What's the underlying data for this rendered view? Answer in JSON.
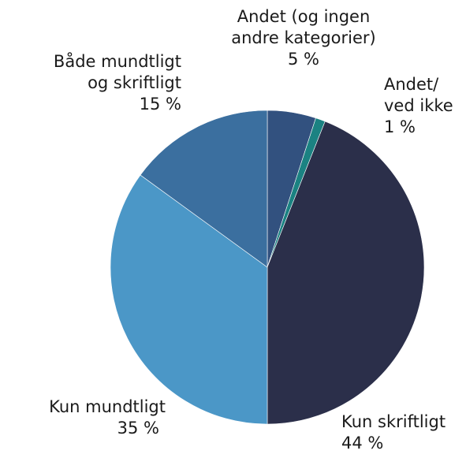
{
  "chart_data": {
    "type": "pie",
    "categories": [
      "Andet (og ingen\nandre kategorier)",
      "Andet/\nved ikke",
      "Kun skriftligt",
      "Kun mundtligt",
      "Både mundtligt\nog skriftligt"
    ],
    "values": [
      5,
      1,
      44,
      35,
      15
    ],
    "value_labels": [
      "5 %",
      "1 %",
      "44 %",
      "35 %",
      "15 %"
    ],
    "colors": [
      "#32517f",
      "#1b8282",
      "#2b2f4a",
      "#4b97c7",
      "#3b6f9f"
    ]
  }
}
